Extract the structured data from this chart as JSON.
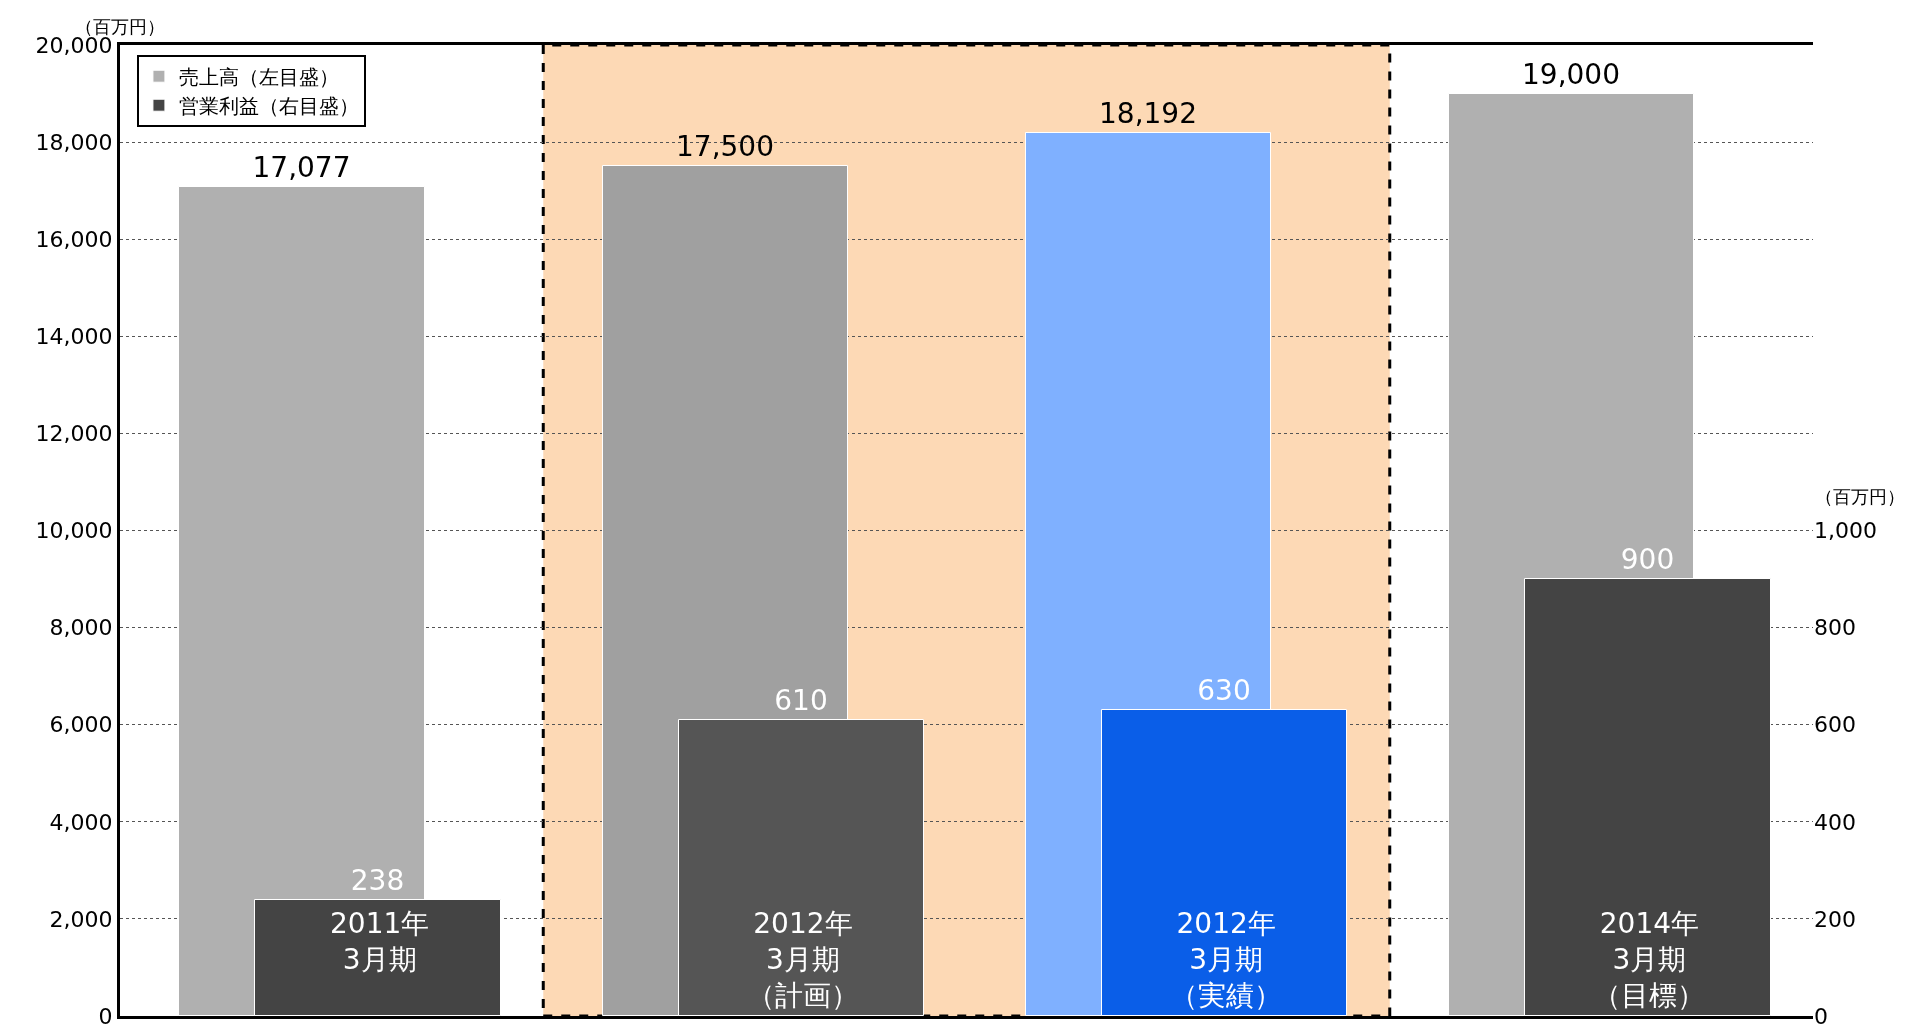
{
  "chart_data": {
    "type": "bar",
    "ylabel": "（百万円）",
    "y2label": "（百万円）",
    "categories": [
      "2011年3月期",
      "2012年3月期（計画）",
      "2012年3月期（実績）",
      "2014年3月期（目標）"
    ],
    "series": [
      {
        "name": "売上高（左目盛）",
        "color": "#b0b0b0",
        "colors": [
          null,
          "#a0a0a0",
          "#7fb0ff",
          null
        ],
        "values": [
          17077,
          17500,
          18192,
          19000
        ],
        "value_labels": [
          "17,077",
          "17,500",
          "18,192",
          "19,000"
        ]
      },
      {
        "name": "営業利益（右目盛）",
        "color": "#444444",
        "colors": [
          null,
          "#555555",
          "#0a5ee8",
          null
        ],
        "values": [
          238,
          610,
          630,
          900
        ],
        "axis": "y2",
        "value_labels": [
          "238",
          "610",
          "630",
          "900"
        ]
      }
    ],
    "ylim": [
      0,
      20000
    ],
    "yticks": [
      0,
      {
        "value": 2000,
        "label": "2,000"
      },
      {
        "value": 4000,
        "label": "4,000"
      },
      {
        "value": 6000,
        "label": "6,000"
      },
      {
        "value": 8000,
        "label": "8,000"
      },
      {
        "value": 10000,
        "label": "10,000"
      },
      {
        "value": 12000,
        "label": "12,000"
      },
      {
        "value": 14000,
        "label": "14,000"
      },
      {
        "value": 16000,
        "label": "16,000"
      },
      {
        "value": 18000,
        "label": "18,000"
      },
      {
        "value": 20000,
        "label": "20,000"
      }
    ],
    "y2lim": [
      0,
      2000
    ],
    "y2ticks": [
      0,
      200,
      400,
      600,
      800,
      {
        "value": 1000,
        "label": "1,000"
      }
    ],
    "grid": "y",
    "legend": "top left"
  }
}
